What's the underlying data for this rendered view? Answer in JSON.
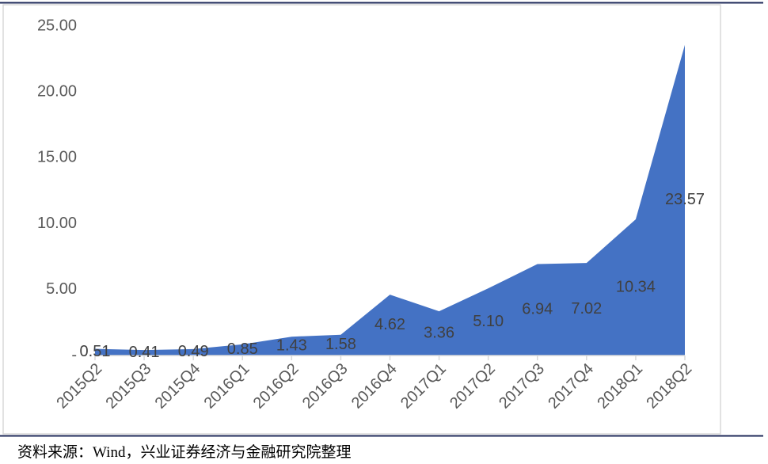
{
  "chart_data": {
    "type": "area",
    "categories": [
      "2015Q2",
      "2015Q3",
      "2015Q4",
      "2016Q1",
      "2016Q2",
      "2016Q3",
      "2016Q4",
      "2017Q1",
      "2017Q2",
      "2017Q3",
      "2017Q4",
      "2018Q1",
      "2018Q2"
    ],
    "values": [
      0.51,
      0.41,
      0.49,
      0.85,
      1.43,
      1.58,
      4.62,
      3.36,
      5.1,
      6.94,
      7.02,
      10.34,
      23.57
    ],
    "value_labels": [
      "0.51",
      "0.41",
      "0.49",
      "0.85",
      "1.43",
      "1.58",
      "4.62",
      "3.36",
      "5.10",
      "6.94",
      "7.02",
      "10.34",
      "23.57"
    ],
    "color": "#4472c4",
    "ylim": [
      0,
      25
    ],
    "yticks": [
      {
        "value": 0,
        "label": "-"
      },
      {
        "value": 5,
        "label": "5.00"
      },
      {
        "value": 10,
        "label": "10.00"
      },
      {
        "value": 15,
        "label": "15.00"
      },
      {
        "value": 20,
        "label": "20.00"
      },
      {
        "value": 25,
        "label": "25.00"
      }
    ],
    "source": "资料来源：Wind，兴业证券经济与金融研究院整理"
  }
}
